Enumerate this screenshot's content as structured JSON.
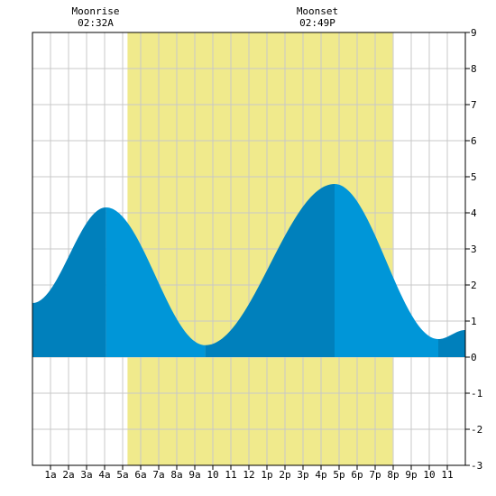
{
  "chart_data": {
    "type": "area",
    "title": "",
    "xlabel": "",
    "ylabel": "",
    "xlim": [
      0,
      24
    ],
    "ylim": [
      -3,
      9
    ],
    "y_ticks": [
      9,
      8,
      7,
      6,
      5,
      4,
      3,
      2,
      1,
      0,
      -1,
      -2,
      -3
    ],
    "x_ticks": [
      {
        "x": 1,
        "label": "1a"
      },
      {
        "x": 2,
        "label": "2a"
      },
      {
        "x": 3,
        "label": "3a"
      },
      {
        "x": 4,
        "label": "4a"
      },
      {
        "x": 5,
        "label": "5a"
      },
      {
        "x": 6,
        "label": "6a"
      },
      {
        "x": 7,
        "label": "7a"
      },
      {
        "x": 8,
        "label": "8a"
      },
      {
        "x": 9,
        "label": "9a"
      },
      {
        "x": 10,
        "label": "10"
      },
      {
        "x": 11,
        "label": "11"
      },
      {
        "x": 12,
        "label": "12"
      },
      {
        "x": 13,
        "label": "1p"
      },
      {
        "x": 14,
        "label": "2p"
      },
      {
        "x": 15,
        "label": "3p"
      },
      {
        "x": 16,
        "label": "4p"
      },
      {
        "x": 17,
        "label": "5p"
      },
      {
        "x": 18,
        "label": "6p"
      },
      {
        "x": 19,
        "label": "7p"
      },
      {
        "x": 20,
        "label": "8p"
      },
      {
        "x": 21,
        "label": "9p"
      },
      {
        "x": 22,
        "label": "10"
      },
      {
        "x": 23,
        "label": "11"
      }
    ],
    "grid": true,
    "daylight": {
      "start": 5.27,
      "end": 19.97
    },
    "tide_extrema": [
      {
        "x": 0.0,
        "y": 1.5
      },
      {
        "x": 4.08,
        "y": 4.15
      },
      {
        "x": 9.58,
        "y": 0.33
      },
      {
        "x": 16.75,
        "y": 4.8
      },
      {
        "x": 22.5,
        "y": 0.5
      },
      {
        "x": 24.0,
        "y": 0.75
      }
    ],
    "annotations": [
      {
        "x": 3.5,
        "line1": "Moonrise",
        "line2": "02:32A"
      },
      {
        "x": 15.8,
        "line1": "Moonset",
        "line2": "02:49P"
      }
    ],
    "colors": {
      "daylight": "#f0ea8c",
      "water_light": "#0096d8",
      "water_dark": "#0080bc",
      "grid": "#c8c8c8",
      "axis": "#000000"
    }
  }
}
